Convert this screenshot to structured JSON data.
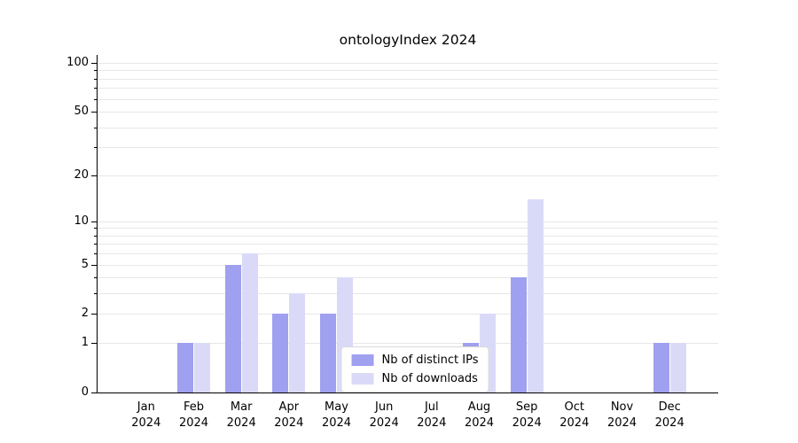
{
  "title": "ontologyIndex 2024",
  "colors": {
    "ips": "#a0a0f0",
    "downloads": "#dadaf8",
    "grid": "#e7e7e7",
    "axis": "#000000",
    "background": "#ffffff"
  },
  "chart_data": {
    "type": "bar",
    "title": "ontologyIndex 2024",
    "categories": [
      "Jan",
      "Feb",
      "Mar",
      "Apr",
      "May",
      "Jun",
      "Jul",
      "Aug",
      "Sep",
      "Oct",
      "Nov",
      "Dec"
    ],
    "year": "2024",
    "series": [
      {
        "name": "Nb of distinct IPs",
        "color_key": "ips",
        "values": [
          0,
          1,
          5,
          2,
          2,
          0,
          0,
          1,
          4,
          0,
          0,
          1
        ]
      },
      {
        "name": "Nb of downloads",
        "color_key": "downloads",
        "values": [
          0,
          1,
          6,
          3,
          4,
          0,
          0,
          2,
          14,
          0,
          0,
          1
        ]
      }
    ],
    "xlabel": "",
    "ylabel": "",
    "yscale": "log1p",
    "ylim": [
      0,
      100
    ],
    "ytick_labels": [
      0,
      1,
      2,
      5,
      10,
      20,
      50,
      100
    ],
    "grid_values": [
      1,
      2,
      3,
      4,
      5,
      6,
      7,
      8,
      9,
      10,
      20,
      30,
      40,
      50,
      60,
      70,
      80,
      90,
      100
    ],
    "grid": true,
    "legend_position": "lower center"
  }
}
